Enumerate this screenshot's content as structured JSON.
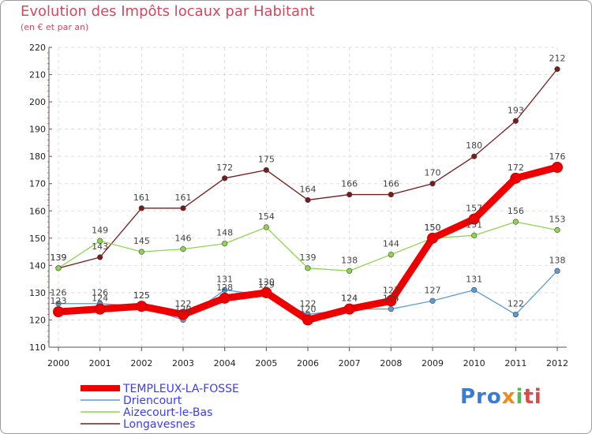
{
  "chart_data": {
    "type": "line",
    "title": "Evolution des Impôts locaux par Habitant",
    "subtitle": "(en € et par an)",
    "xlabel": "",
    "ylabel": "",
    "ylim": [
      110,
      220
    ],
    "yticks": [
      110,
      120,
      130,
      140,
      150,
      160,
      170,
      180,
      190,
      200,
      210,
      220
    ],
    "categories": [
      "2000",
      "2001",
      "2002",
      "2003",
      "2004",
      "2005",
      "2006",
      "2007",
      "2008",
      "2009",
      "2010",
      "2011",
      "2012"
    ],
    "grid": true,
    "legend_position": "bottom-left",
    "series": [
      {
        "name": "Longavesnes",
        "color": "#7a1a1a",
        "values": [
          139,
          143,
          161,
          161,
          172,
          175,
          164,
          166,
          166,
          170,
          180,
          193,
          212
        ]
      },
      {
        "name": "Aizecourt-le-Bas",
        "color": "#8fd44f",
        "values": [
          139,
          149,
          145,
          146,
          148,
          154,
          139,
          138,
          144,
          150,
          151,
          156,
          153
        ]
      },
      {
        "name": "Driencourt",
        "color": "#5b9bd5",
        "values": [
          126,
          126,
          125,
          120,
          131,
          129,
          122,
          124,
          124,
          127,
          131,
          122,
          138
        ]
      },
      {
        "name": "TEMPLEUX-LA-FOSSE",
        "color": "#ee0000",
        "values": [
          123,
          124,
          125,
          122,
          128,
          130,
          120,
          124,
          127,
          150,
          157,
          172,
          176
        ]
      }
    ]
  },
  "legend": {
    "items": [
      "TEMPLEUX-LA-FOSSE",
      "Driencourt",
      "Aizecourt-le-Bas",
      "Longavesnes"
    ]
  },
  "logo": {
    "part1": "Pro",
    "part2": "x",
    "part3": "i",
    "part4": "ti"
  }
}
